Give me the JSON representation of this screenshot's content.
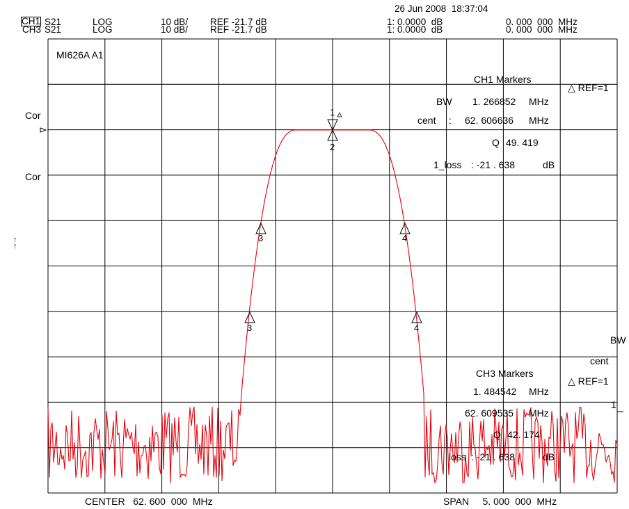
{
  "header": {
    "timestamp": "26 Jun 2008  18:37:04",
    "ch1": {
      "channel": "CH1",
      "param": "S21",
      "format": "LOG",
      "scale": "10 dB/",
      "ref": "REF -21.7 dB",
      "marker_val": "1: 0.0000  dB",
      "marker_freq": "0. 000  000  MHz"
    },
    "ch3": {
      "channel": "CH3",
      "param": "S21",
      "format": "LOG",
      "scale": "10 dB/",
      "ref": "REF -21.7 dB",
      "marker_val": "1: 0.0000  dB",
      "marker_freq": "0. 000  000  MHz"
    }
  },
  "left_labels": {
    "cor1": "Cor",
    "cor2": "Cor",
    "arrow1": "↑",
    "arrow2": "↑"
  },
  "grid_title": "MI626A A1",
  "ch1_markers": {
    "title": "CH1  Markers",
    "bw_label": "BW",
    "bw_value": "1. 266852",
    "bw_unit": "MHz",
    "cent_label": "cent",
    "cent_sep": ":",
    "cent_value": "62. 606636",
    "cent_unit": "MHz",
    "q_label": "Q",
    "q_value": "49. 419",
    "loss_label": "1_loss",
    "loss_value": ":  -21  . 638",
    "loss_unit": "dB",
    "ref": "△ REF=1"
  },
  "ch3_markers": {
    "title": "CH3  Markers",
    "bw_value": "1. 484542",
    "bw_unit": "MHz",
    "cent_value": "62. 609535",
    "cent_unit": "MHz",
    "q_label": "Q",
    "q_value": "42. 174",
    "loss_label": "loss",
    "loss_value": ":  -21  . 638",
    "loss_unit": "dB",
    "ref": "△ REF=1",
    "side_bw": "BW",
    "side_cent": "cent",
    "side_one": "1"
  },
  "marker_labels": {
    "m1": "1",
    "m2": "2",
    "m3": "3",
    "m4": "4"
  },
  "footer": {
    "center": "CENTER   62. 600  000  MHz",
    "span": "SPAN     5. 000  000  MHz"
  },
  "colors": {
    "trace": "#e8000b",
    "grid": "#000000",
    "background": "#ffffff"
  }
}
